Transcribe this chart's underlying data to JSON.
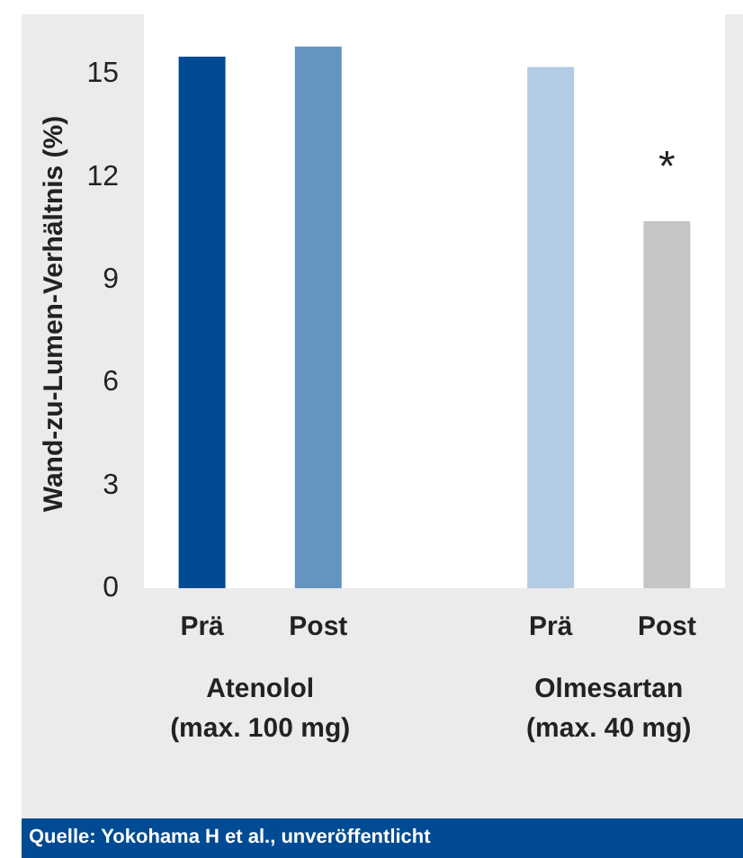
{
  "chart_data": {
    "type": "bar",
    "ylabel": "Wand-zu-Lumen-Verhältnis (%)",
    "categories": [
      "Prä",
      "Post",
      null,
      "Prä",
      "Post"
    ],
    "values": [
      15.5,
      15.8,
      null,
      15.2,
      10.7
    ],
    "colors": [
      "#004b93",
      "#6594c0",
      "#ffffff",
      "#b3cbe3",
      "#c4c5c7"
    ],
    "ylim": [
      0,
      16
    ],
    "yticks": [
      0,
      3,
      6,
      9,
      12,
      15
    ],
    "grid": false,
    "annotations": [
      "Atenolol\n(max. 100 mg)",
      "Olmesartan\n(max. 40 mg)",
      "*",
      "Quelle: Yokohama H et al., unveröffentlicht"
    ]
  }
}
